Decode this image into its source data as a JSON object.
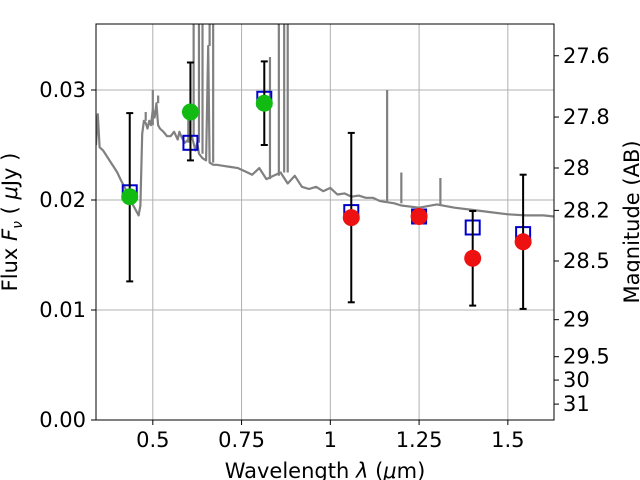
{
  "chart_data": {
    "type": "scatter",
    "xlabel": "Wavelength  $\\lambda$ ($\\mu$m)",
    "ylabel": "Flux  $F_\\nu$  ( $\\mu$Jy )",
    "y2label": "Magnitude (AB)",
    "xlim": [
      0.34,
      1.63
    ],
    "ylim": [
      0.0,
      0.036
    ],
    "grid": true,
    "x_ticks": [
      {
        "value": 0.5,
        "label": "0.5"
      },
      {
        "value": 0.75,
        "label": "0.75"
      },
      {
        "value": 1.0,
        "label": "1"
      },
      {
        "value": 1.25,
        "label": "1.25"
      },
      {
        "value": 1.5,
        "label": "1.5"
      }
    ],
    "y_ticks": [
      {
        "value": 0.0,
        "label": "0.00"
      },
      {
        "value": 0.01,
        "label": "0.01"
      },
      {
        "value": 0.02,
        "label": "0.02"
      },
      {
        "value": 0.03,
        "label": "0.03"
      }
    ],
    "y2_ticks": [
      {
        "mag": 27.6,
        "label": "27.6"
      },
      {
        "mag": 27.8,
        "label": "27.8"
      },
      {
        "mag": 28.0,
        "label": "28"
      },
      {
        "mag": 28.2,
        "label": "28.2"
      },
      {
        "mag": 28.5,
        "label": "28.5"
      },
      {
        "mag": 29.0,
        "label": "29"
      },
      {
        "mag": 29.5,
        "label": "29.5"
      },
      {
        "mag": 30.0,
        "label": "30"
      },
      {
        "mag": 31.0,
        "label": "31"
      }
    ],
    "series": [
      {
        "kind": "model-spectrum-line",
        "color": "#808080",
        "x": [
          0.34,
          0.345,
          0.35,
          0.36,
          0.37,
          0.38,
          0.39,
          0.4,
          0.41,
          0.42,
          0.43,
          0.44,
          0.45,
          0.46,
          0.465,
          0.47,
          0.475,
          0.48,
          0.485,
          0.49,
          0.495,
          0.5,
          0.505,
          0.51,
          0.515,
          0.52,
          0.53,
          0.54,
          0.55,
          0.56,
          0.57,
          0.575,
          0.58,
          0.59,
          0.6,
          0.61,
          0.62,
          0.625,
          0.63,
          0.64,
          0.65,
          0.656,
          0.66,
          0.67,
          0.68,
          0.7,
          0.72,
          0.74,
          0.76,
          0.78,
          0.8,
          0.82,
          0.84,
          0.86,
          0.88,
          0.9,
          0.92,
          0.94,
          0.96,
          0.98,
          1.0,
          1.02,
          1.04,
          1.06,
          1.08,
          1.1,
          1.12,
          1.14,
          1.16,
          1.18,
          1.2,
          1.25,
          1.3,
          1.35,
          1.4,
          1.45,
          1.5,
          1.55,
          1.6,
          1.63
        ],
        "y": [
          0.025,
          0.0278,
          0.0248,
          0.0245,
          0.024,
          0.0235,
          0.023,
          0.0225,
          0.0218,
          0.0212,
          0.0205,
          0.0198,
          0.0192,
          0.0186,
          0.0195,
          0.026,
          0.0272,
          0.027,
          0.0265,
          0.0272,
          0.0268,
          0.0282,
          0.0275,
          0.0288,
          0.0268,
          0.0265,
          0.0262,
          0.0258,
          0.0258,
          0.0262,
          0.0255,
          0.0262,
          0.0258,
          0.0252,
          0.0255,
          0.0258,
          0.0245,
          0.0252,
          0.0242,
          0.0238,
          0.0236,
          0.034,
          0.0234,
          0.0232,
          0.0232,
          0.0231,
          0.023,
          0.0229,
          0.0226,
          0.0223,
          0.0229,
          0.0219,
          0.0222,
          0.0225,
          0.0215,
          0.0222,
          0.0212,
          0.021,
          0.0212,
          0.0208,
          0.0211,
          0.0205,
          0.0206,
          0.0203,
          0.0204,
          0.0202,
          0.0202,
          0.0199,
          0.0198,
          0.0197,
          0.0195,
          0.0193,
          0.0196,
          0.0193,
          0.0191,
          0.0189,
          0.0187,
          0.0186,
          0.0186,
          0.0185
        ],
        "spikes": [
          {
            "x": 0.48,
            "y": 0.028
          },
          {
            "x": 0.5,
            "y": 0.03
          },
          {
            "x": 0.515,
            "y": 0.0295
          },
          {
            "x": 0.6,
            "y": 0.0285
          },
          {
            "x": 0.615,
            "y": 0.036
          },
          {
            "x": 0.63,
            "y": 0.036
          },
          {
            "x": 0.64,
            "y": 0.036
          },
          {
            "x": 0.66,
            "y": 0.036
          },
          {
            "x": 0.67,
            "y": 0.036
          },
          {
            "x": 0.83,
            "y": 0.033
          },
          {
            "x": 0.855,
            "y": 0.036
          },
          {
            "x": 0.87,
            "y": 0.036
          },
          {
            "x": 0.88,
            "y": 0.036
          },
          {
            "x": 1.16,
            "y": 0.03
          },
          {
            "x": 1.2,
            "y": 0.0225
          },
          {
            "x": 1.31,
            "y": 0.022
          }
        ]
      },
      {
        "kind": "model-photometry",
        "marker": "open-square",
        "color": "#0000cc",
        "x": [
          0.435,
          0.606,
          0.814,
          1.059,
          1.25,
          1.401,
          1.543
        ],
        "y": [
          0.0207,
          0.0252,
          0.0292,
          0.0189,
          0.0185,
          0.0175,
          0.0169
        ]
      },
      {
        "kind": "observed-green",
        "marker": "filled-circle",
        "color": "#11bb11",
        "x": [
          0.435,
          0.606,
          0.814
        ],
        "y": [
          0.0203,
          0.028,
          0.0288
        ],
        "yerr_low": [
          0.0126,
          0.0236,
          0.025
        ],
        "yerr_high": [
          0.0279,
          0.0325,
          0.0326
        ]
      },
      {
        "kind": "observed-red",
        "marker": "filled-circle",
        "color": "#ee1111",
        "x": [
          1.059,
          1.25,
          1.401,
          1.543
        ],
        "y": [
          0.0184,
          0.0185,
          0.0147,
          0.0162
        ],
        "yerr_low": [
          0.0107,
          0.0185,
          0.0104,
          0.0101
        ],
        "yerr_high": [
          0.0261,
          0.0185,
          0.019,
          0.0223
        ]
      }
    ]
  }
}
